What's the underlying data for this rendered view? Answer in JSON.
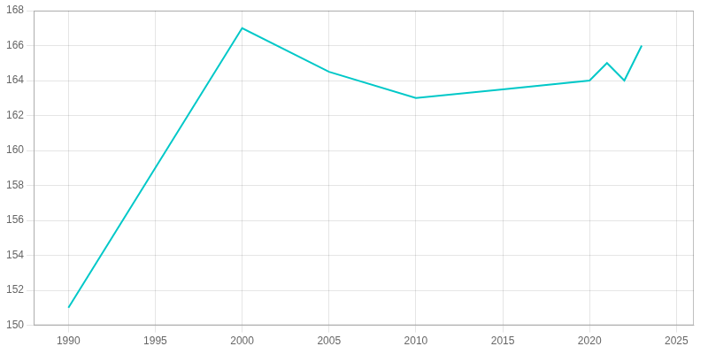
{
  "chart_data": {
    "type": "line",
    "x": [
      1990,
      2000,
      2005,
      2010,
      2015,
      2020,
      2021,
      2022,
      2023
    ],
    "values": [
      151,
      167,
      164.5,
      163,
      163.5,
      164,
      165,
      164,
      166
    ],
    "color": "#00c8c8",
    "xlim": [
      1988,
      2026
    ],
    "ylim": [
      150,
      168
    ],
    "xticks": [
      1990,
      1995,
      2000,
      2005,
      2010,
      2015,
      2020,
      2025
    ],
    "yticks": [
      150,
      152,
      154,
      156,
      158,
      160,
      162,
      164,
      166,
      168
    ],
    "grid": true
  }
}
